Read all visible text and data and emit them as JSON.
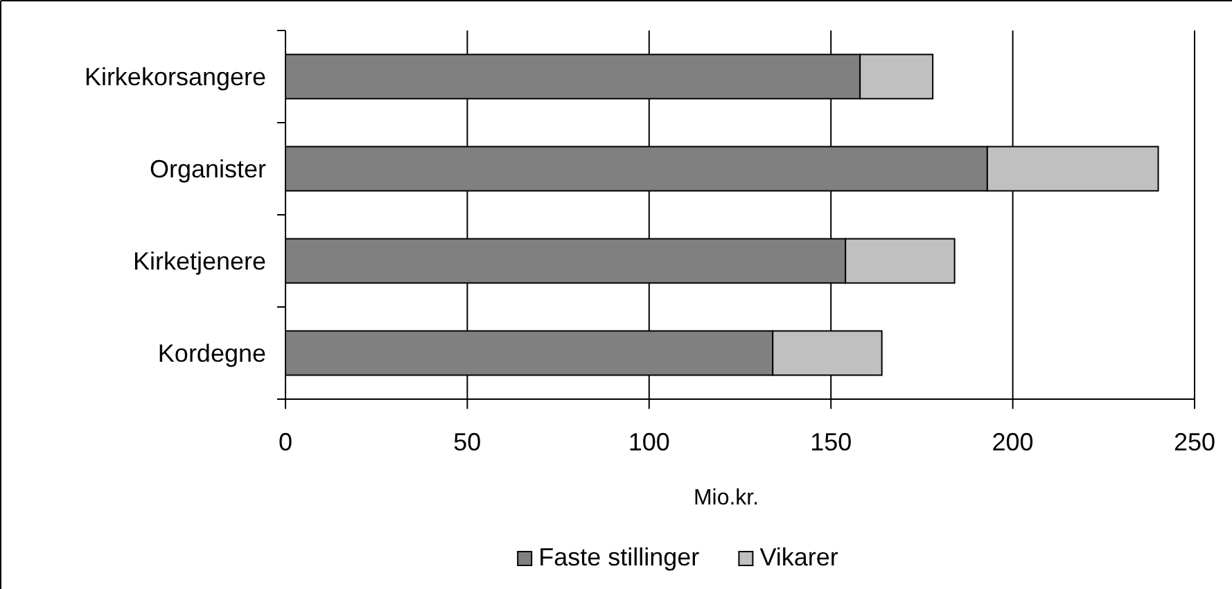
{
  "chart_data": {
    "type": "bar",
    "orientation": "horizontal",
    "stacked": true,
    "categories": [
      "Kirkekorsangere",
      "Organister",
      "Kirketjenere",
      "Kordegne"
    ],
    "series": [
      {
        "name": "Faste stillinger",
        "color": "#808080",
        "values": [
          158,
          193,
          154,
          134
        ]
      },
      {
        "name": "Vikarer",
        "color": "#c0c0c0",
        "values": [
          20,
          47,
          30,
          30
        ]
      }
    ],
    "xlabel": "Mio.kr.",
    "xlim": [
      0,
      250
    ],
    "xticks": [
      0,
      50,
      100,
      150,
      200,
      250
    ],
    "grid": "x",
    "legend": "bottom"
  }
}
